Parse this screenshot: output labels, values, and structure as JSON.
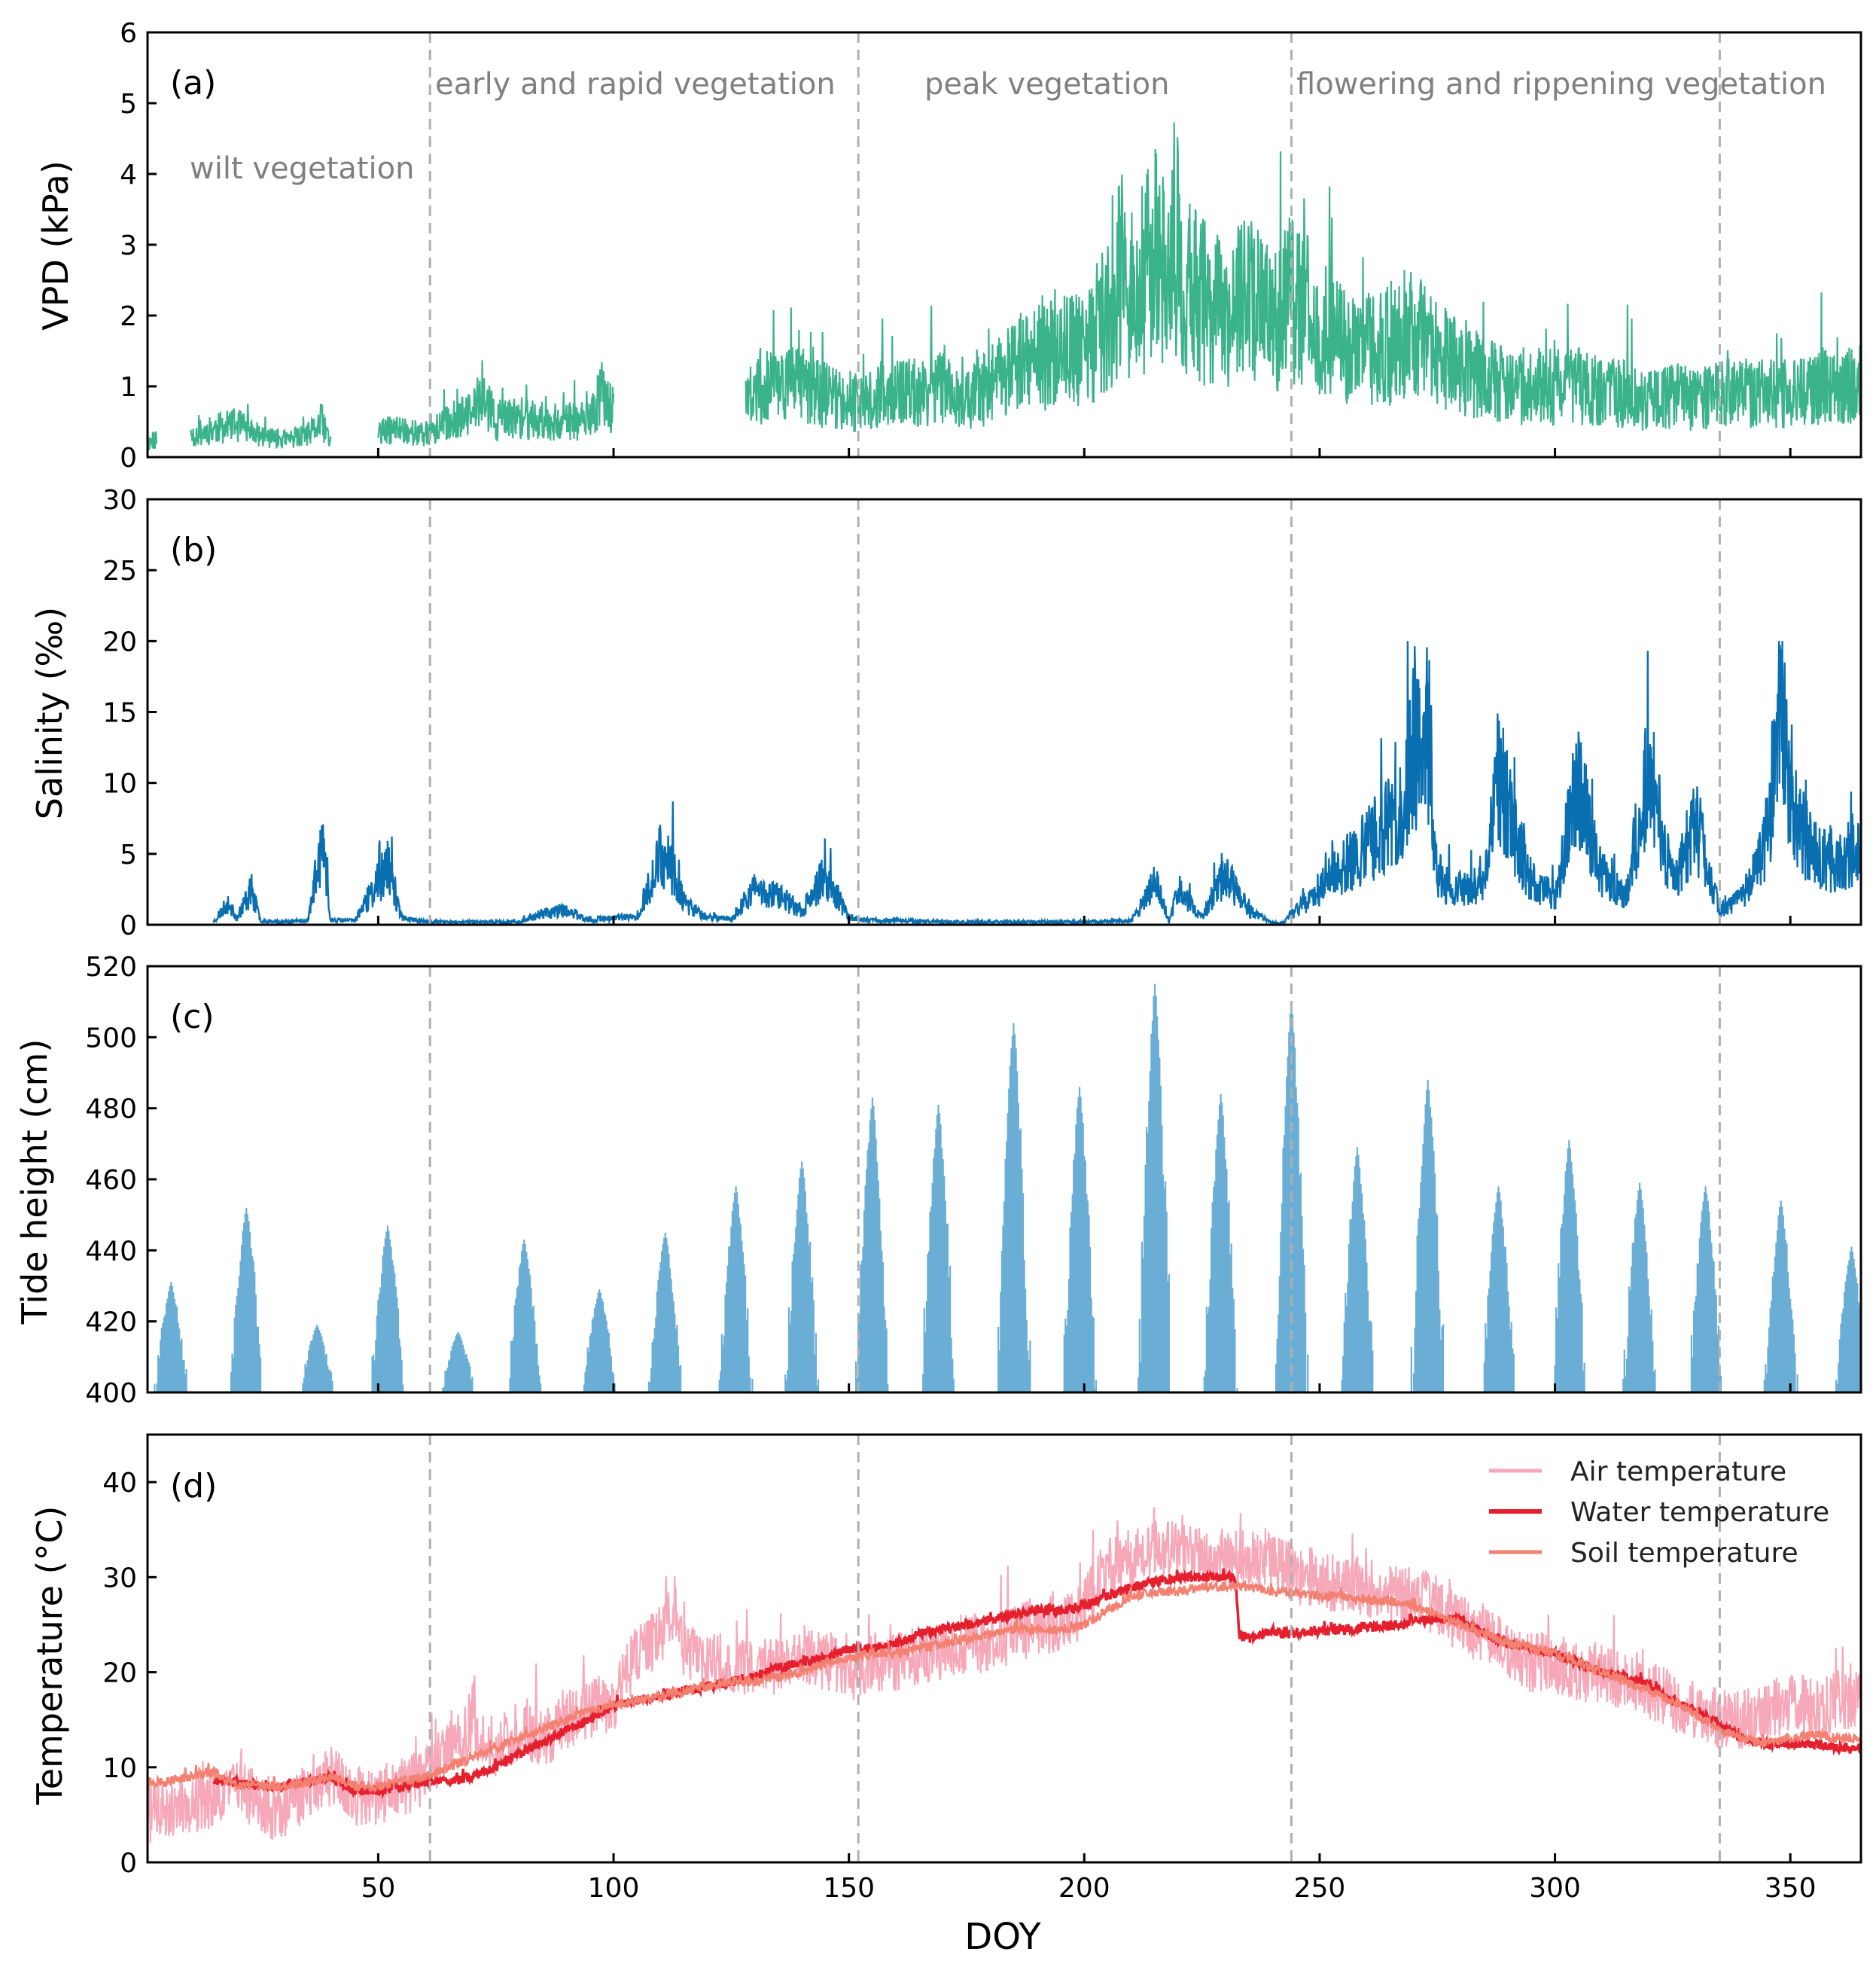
{
  "shared_x": {
    "label": "DOY",
    "range": [
      1,
      365
    ],
    "ticks": [
      50,
      100,
      150,
      200,
      250,
      300,
      350
    ],
    "tick_labels": [
      "50",
      "100",
      "150",
      "200",
      "250",
      "300",
      "350"
    ]
  },
  "phase_boundaries_doy": [
    61,
    152,
    244,
    335
  ],
  "phase_labels": [
    {
      "text": "wilt vegetation",
      "panel": "a"
    },
    {
      "text": "early and rapid vegetation",
      "panel": "a"
    },
    {
      "text": "peak vegetation",
      "panel": "a"
    },
    {
      "text": "flowering and rippening vegetation",
      "panel": "a"
    }
  ],
  "colors": {
    "vpd": "#3bb38a",
    "salinity": "#0a6fb0",
    "tide": "#6aaed6",
    "air_temperature": "#f7a8b8",
    "water_temperature": "#e5202e",
    "soil_temperature": "#f38070",
    "phase_line": "#b0b0b0"
  },
  "chart_data": [
    {
      "panel": "(a)",
      "type": "line",
      "xlabel": "",
      "ylabel": "VPD (kPa)",
      "ylim": [
        0,
        6
      ],
      "yticks": [
        0,
        1,
        2,
        3,
        4,
        5,
        6
      ],
      "series": [
        {
          "x": [
            1,
            3,
            5,
            10,
            15,
            20,
            25,
            30,
            35,
            38,
            40,
            45,
            50,
            55,
            60,
            65,
            70,
            72,
            75,
            80,
            85,
            90,
            95,
            98,
            100,
            103,
            128,
            130,
            135,
            140,
            145,
            150,
            152,
            155,
            160,
            165,
            170,
            175,
            180,
            185,
            190,
            195,
            200,
            205,
            208,
            210,
            215,
            218,
            220,
            222,
            225,
            230,
            235,
            240,
            243,
            245,
            250,
            255,
            260,
            265,
            270,
            275,
            280,
            285,
            290,
            295,
            300,
            305,
            310,
            315,
            320,
            325,
            330,
            335,
            340,
            345,
            350,
            355,
            360,
            365
          ],
          "values": [
            0.2,
            0.25,
            null,
            0.3,
            0.4,
            0.45,
            0.3,
            0.25,
            0.3,
            0.5,
            0.2,
            null,
            0.35,
            0.4,
            0.3,
            0.5,
            0.6,
            0.9,
            0.5,
            0.55,
            0.5,
            0.5,
            0.5,
            1.0,
            0.6,
            null,
            0.8,
            0.9,
            1.1,
            1.0,
            0.9,
            0.8,
            0.7,
            0.8,
            0.9,
            0.9,
            1.0,
            0.8,
            1.0,
            1.3,
            1.4,
            1.5,
            1.5,
            2.0,
            2.6,
            2.3,
            2.8,
            2.5,
            3.0,
            2.4,
            2.2,
            2.0,
            2.2,
            1.9,
            2.2,
            2.3,
            1.8,
            1.6,
            1.5,
            1.6,
            1.8,
            1.4,
            1.3,
            1.1,
            1.0,
            1.0,
            1.0,
            1.0,
            0.9,
            0.9,
            0.8,
            0.9,
            0.8,
            0.9,
            0.9,
            0.9,
            0.9,
            1.0,
            1.0,
            1.0
          ]
        }
      ]
    },
    {
      "panel": "(b)",
      "type": "line",
      "xlabel": "",
      "ylabel": "Salinity (‰)",
      "ylim": [
        0,
        30
      ],
      "yticks": [
        0,
        5,
        10,
        15,
        20,
        25,
        30
      ],
      "series": [
        {
          "x": [
            15,
            18,
            20,
            23,
            25,
            30,
            35,
            38,
            40,
            45,
            50,
            52,
            55,
            60,
            70,
            80,
            85,
            90,
            95,
            100,
            105,
            110,
            112,
            115,
            120,
            125,
            130,
            135,
            140,
            145,
            150,
            155,
            160,
            170,
            180,
            200,
            210,
            215,
            218,
            220,
            225,
            230,
            235,
            240,
            242,
            268,
            270,
            273,
            275,
            280,
            285,
            288,
            290,
            295,
            300,
            305,
            310,
            315,
            320,
            325,
            330,
            335,
            340,
            345,
            348,
            350,
            355,
            360,
            365
          ],
          "values": [
            0.2,
            1.5,
            0.5,
            2.5,
            0.3,
            0.2,
            0.3,
            5.5,
            0.3,
            0.3,
            3.0,
            4.0,
            0.5,
            0.2,
            0.2,
            0.2,
            0.8,
            1.0,
            0.3,
            0.5,
            0.5,
            5.0,
            4.5,
            1.5,
            0.5,
            0.4,
            2.5,
            2.0,
            1.0,
            3.5,
            0.5,
            0.3,
            0.3,
            0.2,
            0.2,
            0.2,
            0.3,
            3.0,
            0.3,
            2.5,
            0.5,
            3.5,
            1.0,
            0.1,
            0.1,
            8.0,
            13.0,
            14.5,
            3.0,
            2.5,
            3.0,
            11.0,
            8.0,
            3.0,
            2.0,
            10.0,
            3.5,
            2.0,
            11.0,
            3.0,
            7.0,
            1.0,
            2.0,
            6.0,
            16.0,
            8.0,
            5.0,
            4.0,
            6.0
          ]
        }
      ]
    },
    {
      "panel": "(c)",
      "type": "bar",
      "xlabel": "",
      "ylabel": "Tide height (cm)",
      "ylim": [
        400,
        520
      ],
      "yticks": [
        400,
        420,
        440,
        460,
        480,
        500,
        520
      ],
      "spring_tides": [
        {
          "doy": 6,
          "peak": 431
        },
        {
          "doy": 22,
          "peak": 452
        },
        {
          "doy": 37,
          "peak": 419
        },
        {
          "doy": 52,
          "peak": 447
        },
        {
          "doy": 67,
          "peak": 417
        },
        {
          "doy": 81,
          "peak": 443
        },
        {
          "doy": 97,
          "peak": 429
        },
        {
          "doy": 111,
          "peak": 445
        },
        {
          "doy": 126,
          "peak": 458
        },
        {
          "doy": 140,
          "peak": 465
        },
        {
          "doy": 155,
          "peak": 483
        },
        {
          "doy": 169,
          "peak": 481
        },
        {
          "doy": 185,
          "peak": 504
        },
        {
          "doy": 199,
          "peak": 486
        },
        {
          "doy": 215,
          "peak": 515
        },
        {
          "doy": 229,
          "peak": 484
        },
        {
          "doy": 244,
          "peak": 510
        },
        {
          "doy": 258,
          "peak": 469
        },
        {
          "doy": 273,
          "peak": 488
        },
        {
          "doy": 288,
          "peak": 458
        },
        {
          "doy": 303,
          "peak": 471
        },
        {
          "doy": 318,
          "peak": 459
        },
        {
          "doy": 332,
          "peak": 458
        },
        {
          "doy": 348,
          "peak": 454
        },
        {
          "doy": 363,
          "peak": 441
        }
      ]
    },
    {
      "panel": "(d)",
      "type": "line",
      "xlabel": "DOY",
      "ylabel": "Temperature (°C)",
      "ylim": [
        0,
        45
      ],
      "yticks": [
        0,
        10,
        20,
        30,
        40
      ],
      "legend_position": "top-right",
      "series": [
        {
          "name": "Air temperature",
          "x": [
            1,
            5,
            10,
            15,
            20,
            25,
            30,
            35,
            40,
            45,
            50,
            55,
            60,
            65,
            70,
            75,
            80,
            85,
            90,
            95,
            100,
            105,
            110,
            113,
            115,
            120,
            125,
            130,
            135,
            140,
            145,
            150,
            155,
            160,
            165,
            170,
            175,
            180,
            185,
            190,
            195,
            200,
            205,
            210,
            215,
            220,
            225,
            230,
            235,
            240,
            245,
            250,
            255,
            260,
            265,
            270,
            275,
            280,
            285,
            290,
            295,
            300,
            305,
            310,
            315,
            320,
            325,
            330,
            335,
            340,
            345,
            350,
            355,
            360,
            365
          ],
          "values": [
            5,
            6,
            5.5,
            7,
            8,
            6,
            5,
            8,
            9,
            7,
            7,
            8,
            9,
            12,
            14,
            12,
            14,
            13,
            15,
            16,
            17,
            22,
            24,
            27,
            22,
            21,
            21,
            20,
            21,
            22,
            21,
            20,
            21,
            21,
            22,
            22,
            23,
            23,
            24,
            25,
            25,
            27,
            31,
            32,
            33,
            33,
            32,
            32,
            32,
            32,
            30,
            30,
            29,
            29,
            28,
            28,
            27,
            25,
            24,
            22,
            21,
            21,
            20,
            20,
            19,
            18,
            17,
            16,
            15,
            15,
            16,
            17,
            16,
            17,
            17
          ]
        },
        {
          "name": "Water temperature",
          "x": [
            15,
            20,
            25,
            30,
            35,
            40,
            45,
            50,
            55,
            60,
            65,
            70,
            75,
            80,
            85,
            90,
            95,
            100,
            105,
            110,
            115,
            120,
            125,
            130,
            135,
            140,
            145,
            150,
            155,
            160,
            165,
            170,
            175,
            180,
            185,
            190,
            195,
            200,
            205,
            210,
            215,
            220,
            225,
            230,
            232,
            233,
            235,
            238,
            240,
            242,
            268,
            270,
            275,
            280,
            285,
            290,
            295,
            300,
            305,
            310,
            315,
            320,
            325,
            330,
            335,
            340,
            345,
            350,
            355,
            360,
            365
          ],
          "values": [
            8.5,
            8.5,
            8,
            8,
            8.5,
            9,
            7.5,
            7.5,
            8,
            8.5,
            8.5,
            9,
            10,
            11.5,
            12.5,
            14,
            15,
            16.5,
            17,
            17.5,
            18,
            18.5,
            19,
            19.5,
            20.5,
            21,
            21.5,
            22.5,
            22.5,
            23,
            24,
            24.5,
            25,
            25.5,
            26,
            26.5,
            26.5,
            27,
            28,
            29,
            29.5,
            30,
            30,
            30,
            30,
            24,
            23.5,
            24,
            24.5,
            24,
            25,
            25.5,
            25.5,
            25.5,
            24,
            23,
            22.5,
            22,
            21,
            20,
            19.5,
            18.5,
            17,
            16,
            14.5,
            13,
            12.5,
            12.5,
            12.5,
            12,
            12
          ]
        },
        {
          "name": "Soil temperature",
          "x": [
            1,
            5,
            10,
            15,
            20,
            25,
            30,
            35,
            40,
            45,
            50,
            55,
            60,
            65,
            70,
            75,
            80,
            85,
            90,
            95,
            100,
            105,
            110,
            115,
            120,
            125,
            130,
            135,
            140,
            145,
            150,
            155,
            160,
            165,
            170,
            175,
            180,
            185,
            190,
            195,
            200,
            205,
            210,
            215,
            220,
            225,
            230,
            235,
            240,
            245,
            250,
            255,
            260,
            265,
            270,
            275,
            280,
            285,
            290,
            295,
            300,
            305,
            310,
            315,
            320,
            325,
            330,
            335,
            340,
            345,
            350,
            355,
            360,
            365
          ],
          "values": [
            8.5,
            8.5,
            9,
            9.5,
            8,
            8,
            8,
            8.5,
            9,
            8,
            8,
            8.5,
            9,
            10,
            11,
            12,
            13,
            14,
            15,
            16,
            16.5,
            17,
            17.5,
            18,
            18.5,
            19,
            19,
            19.5,
            20,
            21,
            21.5,
            22,
            22,
            22.5,
            23,
            23.5,
            24,
            24.5,
            24.5,
            24.5,
            25,
            26.5,
            28,
            28.5,
            28.5,
            29,
            29,
            29,
            28.5,
            28.5,
            28,
            28,
            27.5,
            27.5,
            27,
            26,
            25,
            24,
            23,
            22.5,
            22,
            21,
            20,
            19,
            18,
            17,
            15.5,
            14,
            13,
            12.5,
            13,
            13.5,
            13,
            13
          ]
        }
      ]
    }
  ]
}
